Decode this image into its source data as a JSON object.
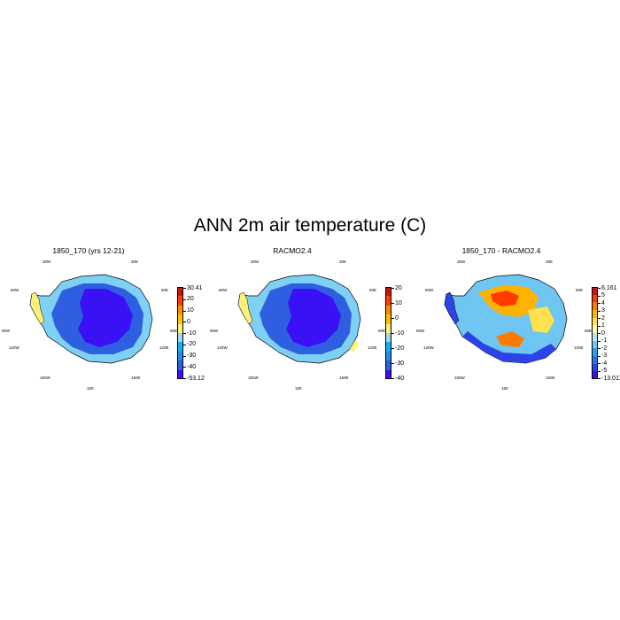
{
  "title": "ANN 2m air temperature (C)",
  "lon_labels": {
    "w30": "30W",
    "e30": "30E",
    "w60": "60W",
    "e60": "60E",
    "w90": "90W",
    "e90": "90E",
    "w120": "120W",
    "e120": "120E",
    "w150": "150W",
    "e150": "150E",
    "s180": "180"
  },
  "panels": [
    {
      "title": "1850_170 (yrs 12-21)",
      "colorbar": {
        "colors": [
          "#3a10f5",
          "#2e5fe0",
          "#1f8fe8",
          "#17b0f5",
          "#9fd8f0",
          "#fff176",
          "#ffc400",
          "#ff8c00",
          "#ff3d00",
          "#c81414"
        ],
        "labels": [
          "30.41",
          "20",
          "10",
          "0",
          "-10",
          "-20",
          "-30",
          "-40",
          "-53.12"
        ]
      }
    },
    {
      "title": "RACMO2.4",
      "colorbar": {
        "colors": [
          "#3a10f5",
          "#2e5fe0",
          "#1f8fe8",
          "#17b0f5",
          "#9fd8f0",
          "#fff176",
          "#ffc400",
          "#ff8c00",
          "#ff3d00",
          "#c81414"
        ],
        "labels": [
          "20",
          "10",
          "0",
          "-10",
          "-20",
          "-30",
          "-40"
        ]
      }
    },
    {
      "title": "1850_170 - RACMO2.4",
      "colorbar": {
        "colors": [
          "#3a10f5",
          "#2c43e8",
          "#2577ea",
          "#28a0f0",
          "#6fc6f2",
          "#b6e4f5",
          "#fff7a8",
          "#ffe14d",
          "#ffb300",
          "#ff7a00",
          "#ff3b00",
          "#c8141a"
        ],
        "labels": [
          "6.161",
          "5",
          "4",
          "3",
          "2",
          "1",
          "0",
          "-1",
          "-2",
          "-3",
          "-4",
          "-5",
          "-13.011"
        ]
      }
    }
  ]
}
